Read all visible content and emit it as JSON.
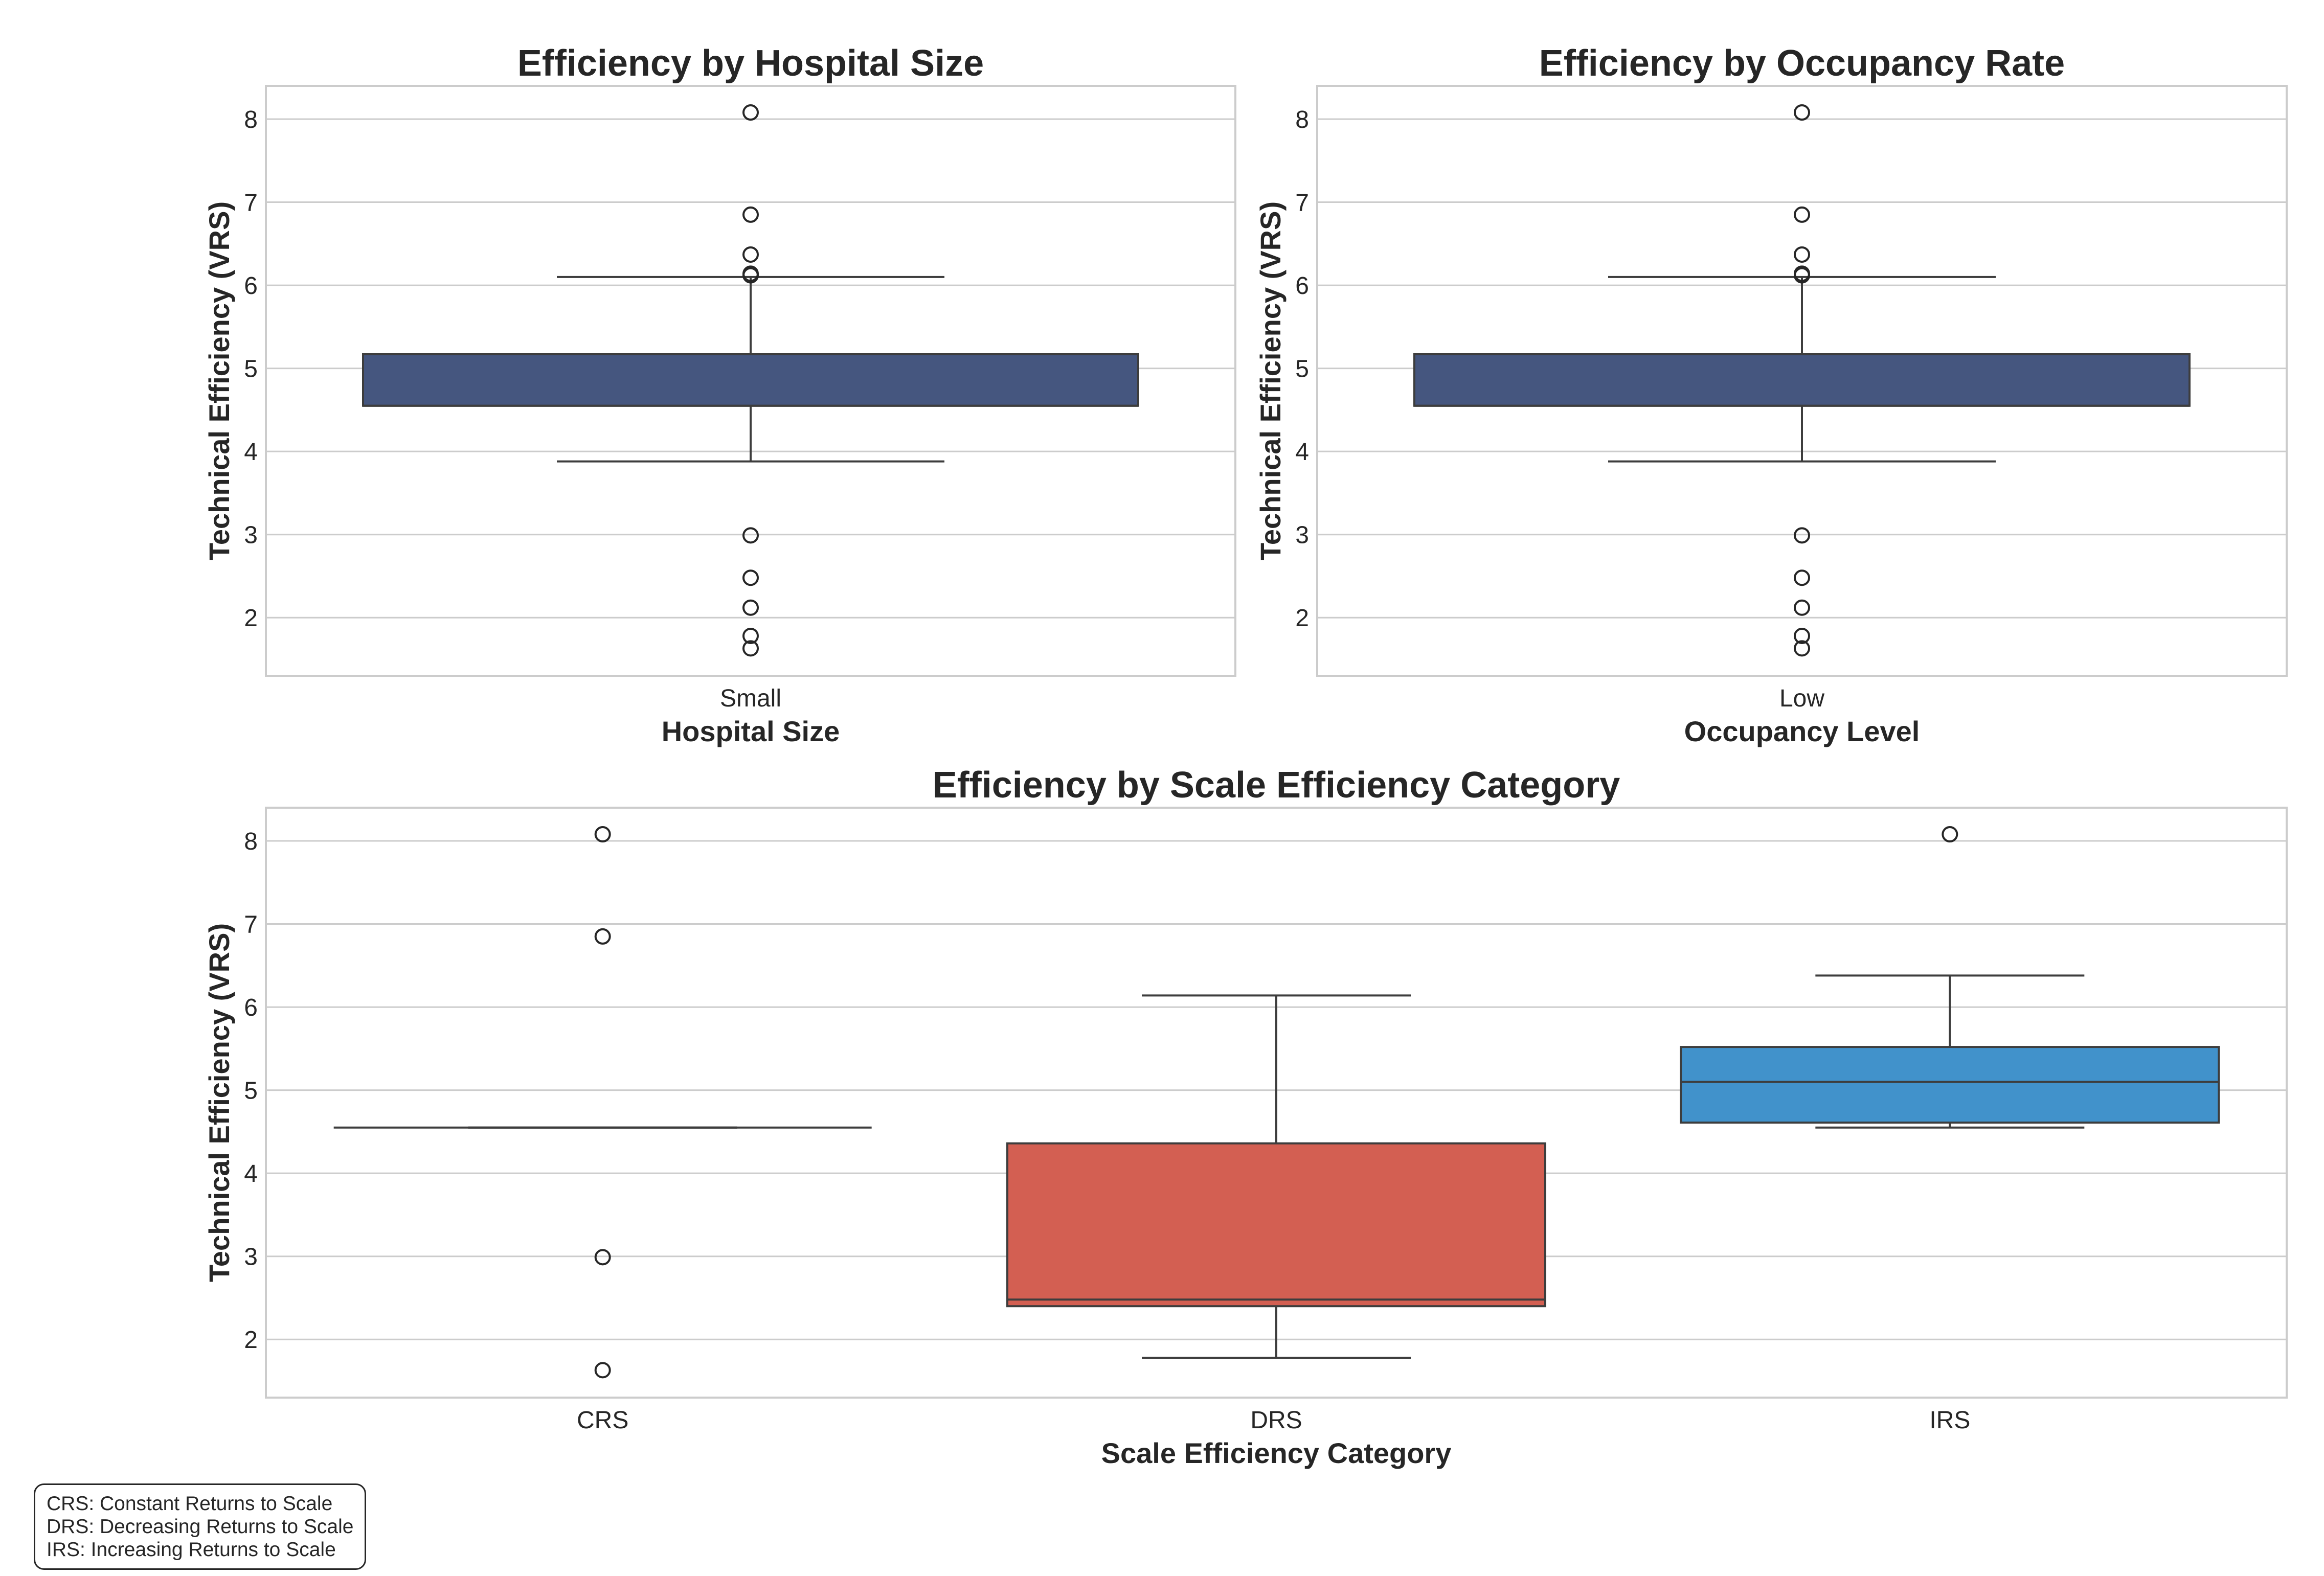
{
  "chart_data": [
    {
      "id": "size",
      "type": "box",
      "title": "Efficiency by Hospital Size",
      "xlabel": "Hospital Size",
      "ylabel": "Technical Efficiency (VRS)",
      "ylim": [
        1.3,
        8.4
      ],
      "yticks": [
        2,
        3,
        4,
        5,
        6,
        7,
        8
      ],
      "grid": true,
      "boxes": [
        {
          "category": "Small",
          "color": "#45567F",
          "q1": 4.55,
          "median": 4.55,
          "q3": 5.17,
          "whisker_low": 3.88,
          "whisker_high": 6.1,
          "outliers": [
            8.08,
            6.85,
            6.37,
            6.14,
            6.12,
            2.99,
            2.48,
            2.12,
            1.78,
            1.63
          ]
        }
      ]
    },
    {
      "id": "occupancy",
      "type": "box",
      "title": "Efficiency by Occupancy Rate",
      "xlabel": "Occupancy Level",
      "ylabel": "Technical Efficiency (VRS)",
      "ylim": [
        1.3,
        8.4
      ],
      "yticks": [
        2,
        3,
        4,
        5,
        6,
        7,
        8
      ],
      "grid": true,
      "boxes": [
        {
          "category": "Low",
          "color": "#45567F",
          "q1": 4.55,
          "median": 4.55,
          "q3": 5.17,
          "whisker_low": 3.88,
          "whisker_high": 6.1,
          "outliers": [
            8.08,
            6.85,
            6.37,
            6.14,
            6.12,
            2.99,
            2.48,
            2.12,
            1.78,
            1.63
          ]
        }
      ]
    },
    {
      "id": "scale",
      "type": "box",
      "title": "Efficiency by Scale Efficiency Category",
      "xlabel": "Scale Efficiency Category",
      "ylabel": "Technical Efficiency (VRS)",
      "ylim": [
        1.3,
        8.4
      ],
      "yticks": [
        2,
        3,
        4,
        5,
        6,
        7,
        8
      ],
      "grid": true,
      "boxes": [
        {
          "category": "CRS",
          "color": "#45567F",
          "q1": 4.55,
          "median": 4.55,
          "q3": 4.55,
          "whisker_low": 4.55,
          "whisker_high": 4.55,
          "outliers": [
            8.08,
            6.85,
            2.99,
            1.63
          ]
        },
        {
          "category": "DRS",
          "color": "#D35F52",
          "q1": 2.4,
          "median": 2.48,
          "q3": 4.36,
          "whisker_low": 1.78,
          "whisker_high": 6.14,
          "outliers": []
        },
        {
          "category": "IRS",
          "color": "#4192CB",
          "q1": 4.61,
          "median": 5.1,
          "q3": 5.52,
          "whisker_low": 4.55,
          "whisker_high": 6.38,
          "outliers": [
            8.08
          ]
        }
      ]
    }
  ],
  "legend": {
    "lines": [
      "CRS: Constant Returns to Scale",
      "DRS: Decreasing Returns to Scale",
      "IRS: Increasing Returns to Scale"
    ]
  }
}
